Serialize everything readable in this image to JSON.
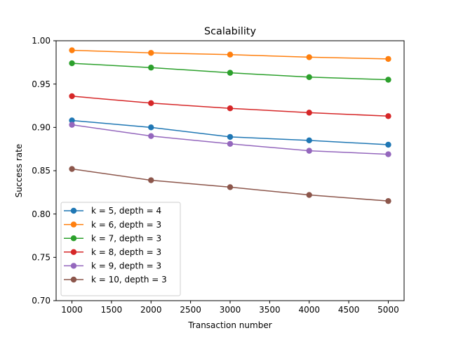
{
  "chart_data": {
    "type": "line",
    "title": "Scalability",
    "xlabel": "Transaction number",
    "ylabel": "Success rate",
    "xlim": [
      800,
      5200
    ],
    "ylim": [
      0.7,
      1.0
    ],
    "xticks": [
      1000,
      1500,
      2000,
      2500,
      3000,
      3500,
      4000,
      4500,
      5000
    ],
    "xtick_labels": [
      "1000",
      "1500",
      "2000",
      "2500",
      "3000",
      "3500",
      "4000",
      "4500",
      "5000"
    ],
    "yticks": [
      0.7,
      0.75,
      0.8,
      0.85,
      0.9,
      0.95,
      1.0
    ],
    "ytick_labels": [
      "0.70",
      "0.75",
      "0.80",
      "0.85",
      "0.90",
      "0.95",
      "1.00"
    ],
    "grid": false,
    "legend_position": "lower-left",
    "x": [
      1000,
      2000,
      3000,
      4000,
      5000
    ],
    "series": [
      {
        "name": "k = 5, depth = 4",
        "color": "#1f77b4",
        "values": [
          0.908,
          0.9,
          0.889,
          0.885,
          0.88
        ]
      },
      {
        "name": "k = 6, depth = 3",
        "color": "#ff7f0e",
        "values": [
          0.989,
          0.986,
          0.984,
          0.981,
          0.979
        ]
      },
      {
        "name": "k = 7, depth = 3",
        "color": "#2ca02c",
        "values": [
          0.974,
          0.969,
          0.963,
          0.958,
          0.955
        ]
      },
      {
        "name": "k = 8, depth = 3",
        "color": "#d62728",
        "values": [
          0.936,
          0.928,
          0.922,
          0.917,
          0.913
        ]
      },
      {
        "name": "k = 9, depth = 3",
        "color": "#9467bd",
        "values": [
          0.903,
          0.89,
          0.881,
          0.873,
          0.869
        ]
      },
      {
        "name": "k = 10, depth = 3",
        "color": "#8c564b",
        "values": [
          0.852,
          0.839,
          0.831,
          0.822,
          0.815
        ]
      }
    ]
  }
}
